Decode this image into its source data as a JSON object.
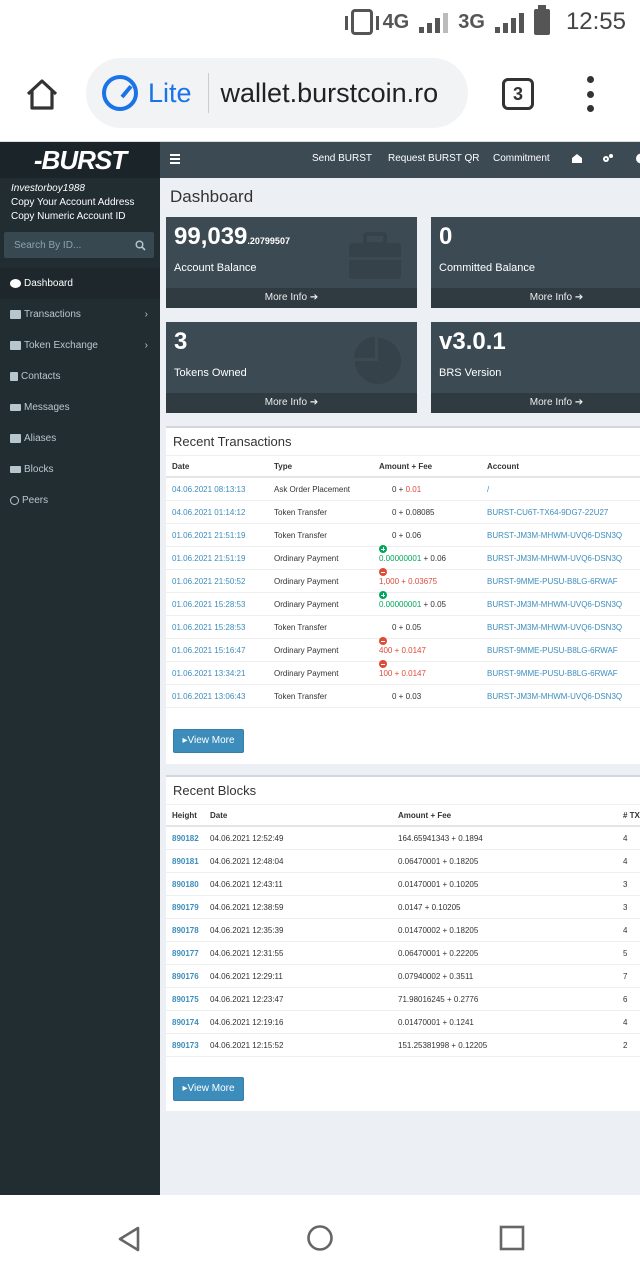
{
  "status_bar": {
    "network_1": "4G",
    "network_2": "3G",
    "time": "12:55"
  },
  "browser": {
    "mode_label": "Lite",
    "url": "wallet.burstcoin.ro",
    "tab_count": "3"
  },
  "sidebar": {
    "logo": "-BURST",
    "username": "Investorboy1988",
    "copy_address": "Copy Your Account Address",
    "copy_numeric": "Copy Numeric Account ID",
    "search_placeholder": "Search By ID...",
    "items": [
      {
        "label": "Dashboard",
        "icon": "dashboard-icon"
      },
      {
        "label": "Transactions",
        "icon": "briefcase-icon"
      },
      {
        "label": "Token Exchange",
        "icon": "chart-icon"
      },
      {
        "label": "Contacts",
        "icon": "address-book-icon"
      },
      {
        "label": "Messages",
        "icon": "envelope-icon"
      },
      {
        "label": "Aliases",
        "icon": "id-card-icon"
      },
      {
        "label": "Blocks",
        "icon": "list-icon"
      },
      {
        "label": "Peers",
        "icon": "globe-icon"
      }
    ]
  },
  "topnav": {
    "send": "Send BURST",
    "request": "Request BURST QR",
    "commitment": "Commitment"
  },
  "dashboard": {
    "title": "Dashboard",
    "boxes": [
      {
        "value": "99,039",
        "fraction": ".20799507",
        "label": "Account Balance",
        "more": "More Info"
      },
      {
        "value": "0",
        "label": "Committed Balance",
        "more": "More Info"
      },
      {
        "value": "3",
        "label": "Tokens Owned",
        "more": "More Info"
      },
      {
        "value": "v3.0.1",
        "label": "BRS Version",
        "more": "More Info"
      }
    ]
  },
  "recent_transactions": {
    "title": "Recent Transactions",
    "headers": {
      "date": "Date",
      "type": "Type",
      "amount": "Amount + Fee",
      "account": "Account"
    },
    "rows": [
      {
        "date": "04.06.2021 08:13:13",
        "type": "Ask Order Placement",
        "sign": "",
        "amount": "0",
        "fee": "0.01",
        "fee_red": true,
        "amount_red": false,
        "account": "/"
      },
      {
        "date": "04.06.2021 01:14:12",
        "type": "Token Transfer",
        "sign": "",
        "amount": "0",
        "fee": "0.08085",
        "fee_red": false,
        "amount_red": false,
        "account": "BURST-CU6T-TX64-9DG7-22U27"
      },
      {
        "date": "01.06.2021 21:51:19",
        "type": "Token Transfer",
        "sign": "",
        "amount": "0",
        "fee": "0.06",
        "fee_red": false,
        "amount_red": false,
        "account": "BURST-JM3M-MHWM-UVQ6-DSN3Q"
      },
      {
        "date": "01.06.2021 21:51:19",
        "type": "Ordinary Payment",
        "sign": "plus",
        "amount": "0.00000001",
        "fee": "0.06",
        "fee_red": false,
        "amount_red": false,
        "account": "BURST-JM3M-MHWM-UVQ6-DSN3Q"
      },
      {
        "date": "01.06.2021 21:50:52",
        "type": "Ordinary Payment",
        "sign": "minus",
        "amount": "1,000",
        "fee": "0.03675",
        "fee_red": true,
        "amount_red": true,
        "account": "BURST-9MME-PUSU-B8LG-6RWAF"
      },
      {
        "date": "01.06.2021 15:28:53",
        "type": "Ordinary Payment",
        "sign": "plus",
        "amount": "0.00000001",
        "fee": "0.05",
        "fee_red": false,
        "amount_red": false,
        "account": "BURST-JM3M-MHWM-UVQ6-DSN3Q"
      },
      {
        "date": "01.06.2021 15:28:53",
        "type": "Token Transfer",
        "sign": "",
        "amount": "0",
        "fee": "0.05",
        "fee_red": false,
        "amount_red": false,
        "account": "BURST-JM3M-MHWM-UVQ6-DSN3Q"
      },
      {
        "date": "01.06.2021 15:16:47",
        "type": "Ordinary Payment",
        "sign": "minus",
        "amount": "400",
        "fee": "0.0147",
        "fee_red": true,
        "amount_red": true,
        "account": "BURST-9MME-PUSU-B8LG-6RWAF"
      },
      {
        "date": "01.06.2021 13:34:21",
        "type": "Ordinary Payment",
        "sign": "minus",
        "amount": "100",
        "fee": "0.0147",
        "fee_red": true,
        "amount_red": true,
        "account": "BURST-9MME-PUSU-B8LG-6RWAF"
      },
      {
        "date": "01.06.2021 13:06:43",
        "type": "Token Transfer",
        "sign": "",
        "amount": "0",
        "fee": "0.03",
        "fee_red": false,
        "amount_red": false,
        "account": "BURST-JM3M-MHWM-UVQ6-DSN3Q"
      }
    ],
    "view_more": "View More"
  },
  "recent_blocks": {
    "title": "Recent Blocks",
    "headers": {
      "height": "Height",
      "date": "Date",
      "amount": "Amount + Fee",
      "tx": "# TX"
    },
    "rows": [
      {
        "height": "890182",
        "date": "04.06.2021 12:52:49",
        "amount": "164.65941343 + 0.1894",
        "tx": "4"
      },
      {
        "height": "890181",
        "date": "04.06.2021 12:48:04",
        "amount": "0.06470001 + 0.18205",
        "tx": "4"
      },
      {
        "height": "890180",
        "date": "04.06.2021 12:43:11",
        "amount": "0.01470001 + 0.10205",
        "tx": "3"
      },
      {
        "height": "890179",
        "date": "04.06.2021 12:38:59",
        "amount": "0.0147 + 0.10205",
        "tx": "3"
      },
      {
        "height": "890178",
        "date": "04.06.2021 12:35:39",
        "amount": "0.01470002 + 0.18205",
        "tx": "4"
      },
      {
        "height": "890177",
        "date": "04.06.2021 12:31:55",
        "amount": "0.06470001 + 0.22205",
        "tx": "5"
      },
      {
        "height": "890176",
        "date": "04.06.2021 12:29:11",
        "amount": "0.07940002 + 0.3511",
        "tx": "7"
      },
      {
        "height": "890175",
        "date": "04.06.2021 12:23:47",
        "amount": "71.98016245 + 0.2776",
        "tx": "6"
      },
      {
        "height": "890174",
        "date": "04.06.2021 12:19:16",
        "amount": "0.01470001 + 0.1241",
        "tx": "4"
      },
      {
        "height": "890173",
        "date": "04.06.2021 12:15:52",
        "amount": "151.25381998 + 0.12205",
        "tx": "2"
      }
    ],
    "view_more": "View More"
  },
  "colors": {
    "sidebar_bg": "#222d32",
    "box_bg": "#3c4a53",
    "link": "#3c8dbc",
    "negative": "#dd4b39",
    "positive": "#00a65a"
  }
}
